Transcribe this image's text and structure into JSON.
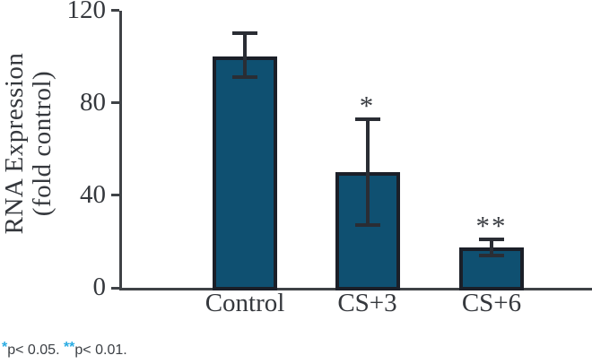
{
  "chart_data": {
    "type": "bar",
    "categories": [
      "Control",
      "CS+3",
      "CS+6"
    ],
    "values": [
      100,
      50,
      17.5
    ],
    "error_up": [
      110,
      73,
      21
    ],
    "error_down": [
      91,
      27,
      14
    ],
    "significance": [
      "",
      "*",
      "**"
    ],
    "ylabel_lines": [
      "RNA Expression",
      "(fold control)"
    ],
    "xlabel": "",
    "title": "",
    "yticks": [
      0,
      40,
      80,
      120
    ],
    "ylim": [
      0,
      120
    ],
    "grid": false,
    "legend": "none",
    "bar_color": "#0f5071",
    "bar_border_color": "#1b1f28",
    "error_bar_color": "#2a2d34",
    "axis_color": "#3f4246",
    "text_color": "#35383d"
  },
  "footnote": {
    "segments": [
      {
        "text": "*",
        "type": "star"
      },
      {
        "text": "p< 0.05. ",
        "type": "text"
      },
      {
        "text": "**",
        "type": "star"
      },
      {
        "text": "p< 0.01.",
        "type": "text"
      }
    ],
    "star_color": "#29abe2"
  }
}
